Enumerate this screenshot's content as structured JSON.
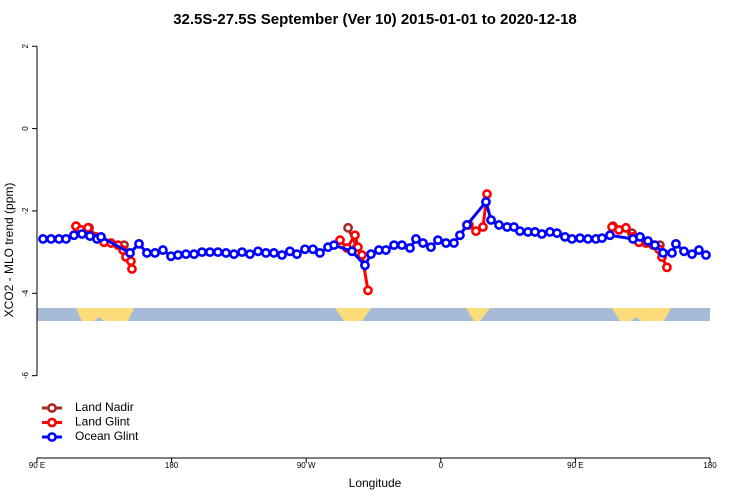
{
  "chart_data": {
    "type": "line",
    "title": "32.5S-27.5S September (Ver 10)   2015-01-01 to 2020-12-18",
    "x_label": "Longitude",
    "y_label": "XCO2 - MLO trend (ppm)",
    "xlim": [
      90,
      540
    ],
    "xticks": [
      {
        "value": 90,
        "label": "90 E"
      },
      {
        "value": 180,
        "label": "180"
      },
      {
        "value": 270,
        "label": "90 W"
      },
      {
        "value": 360,
        "label": "0"
      },
      {
        "value": 450,
        "label": "90 E"
      },
      {
        "value": 540,
        "label": "180"
      }
    ],
    "ylim": [
      -8,
      2.2
    ],
    "yticks": [
      2,
      0,
      -2,
      -4,
      -6
    ],
    "legend": "bottom-left",
    "series": [
      {
        "name": "Land Nadir",
        "color": "#a52a2a",
        "x": [
          116.1,
          124.8,
          130.8,
          148.2,
          null,
          298.0,
          303.9,
          null,
          475.1,
          487.8,
          506.5
        ],
        "values": [
          -2.37,
          -2.41,
          -2.66,
          -2.83,
          null,
          -2.41,
          -2.88,
          null,
          -2.37,
          -2.54,
          -2.83
        ]
      },
      {
        "name": "Land Glint",
        "color": "#ff0000",
        "x": [
          116.1,
          119.4,
          124.1,
          129.4,
          134.8,
          139.5,
          144.2,
          147.5,
          149.5,
          152.8,
          153.5,
          null,
          292.6,
          297.3,
          302.6,
          304.6,
          307.3,
          311.3,
          null,
          378.8,
          383.5,
          388.2,
          390.9,
          null,
          474.5,
          479.1,
          483.8,
          488.5,
          492.5,
          497.2,
          501.9,
          505.9,
          507.9,
          511.2
        ],
        "values": [
          -2.37,
          -2.46,
          -2.41,
          -2.63,
          -2.76,
          -2.78,
          -2.83,
          -2.95,
          -3.12,
          -3.22,
          -3.41,
          null,
          -2.71,
          -2.9,
          -2.59,
          -2.88,
          -3.07,
          -3.93,
          null,
          -2.34,
          -2.49,
          -2.39,
          -1.59,
          null,
          -2.39,
          -2.46,
          -2.41,
          -2.63,
          -2.76,
          -2.78,
          -2.83,
          -2.93,
          -3.12,
          -3.37
        ]
      },
      {
        "name": "Ocean Glint",
        "color": "#0000ff",
        "x": [
          94.0,
          99.4,
          104.7,
          109.4,
          114.7,
          120.1,
          125.4,
          130.1,
          132.8,
          152.2,
          158.2,
          163.5,
          168.9,
          174.2,
          179.6,
          184.3,
          189.6,
          195.0,
          200.3,
          205.6,
          211.0,
          216.4,
          221.7,
          227.1,
          232.4,
          237.8,
          243.1,
          248.4,
          253.8,
          259.1,
          263.8,
          269.2,
          274.5,
          279.2,
          284.6,
          288.6,
          300.6,
          309.3,
          313.3,
          318.6,
          323.3,
          328.7,
          334.0,
          339.4,
          343.4,
          348.1,
          353.4,
          358.1,
          363.5,
          368.8,
          372.8,
          377.5,
          390.2,
          393.6,
          398.9,
          404.3,
          408.9,
          412.9,
          418.3,
          423.0,
          427.6,
          433.0,
          437.7,
          443.0,
          447.7,
          453.1,
          458.4,
          463.7,
          467.8,
          473.1,
          488.5,
          493.2,
          498.5,
          503.2,
          508.6,
          514.6,
          517.2,
          522.6,
          528.0,
          532.6,
          537.3
        ],
        "values": [
          -2.68,
          -2.68,
          -2.68,
          -2.68,
          -2.59,
          -2.56,
          -2.61,
          -2.68,
          -2.63,
          -3.02,
          -2.8,
          -3.02,
          -3.02,
          -2.95,
          -3.1,
          -3.07,
          -3.05,
          -3.05,
          -3.0,
          -3.0,
          -3.0,
          -3.02,
          -3.05,
          -3.0,
          -3.05,
          -2.98,
          -3.02,
          -3.02,
          -3.07,
          -2.98,
          -3.05,
          -2.93,
          -2.93,
          -3.02,
          -2.88,
          -2.83,
          -2.98,
          -3.32,
          -3.05,
          -2.95,
          -2.95,
          -2.83,
          -2.83,
          -2.9,
          -2.68,
          -2.78,
          -2.88,
          -2.71,
          -2.78,
          -2.78,
          -2.59,
          -2.34,
          -1.78,
          -2.22,
          -2.34,
          -2.39,
          -2.39,
          -2.49,
          -2.51,
          -2.51,
          -2.56,
          -2.51,
          -2.54,
          -2.63,
          -2.68,
          -2.66,
          -2.68,
          -2.68,
          -2.66,
          -2.59,
          -2.68,
          -2.63,
          -2.73,
          -2.83,
          -3.02,
          -3.02,
          -2.8,
          -2.98,
          -3.05,
          -2.95,
          -3.07
        ]
      }
    ]
  }
}
